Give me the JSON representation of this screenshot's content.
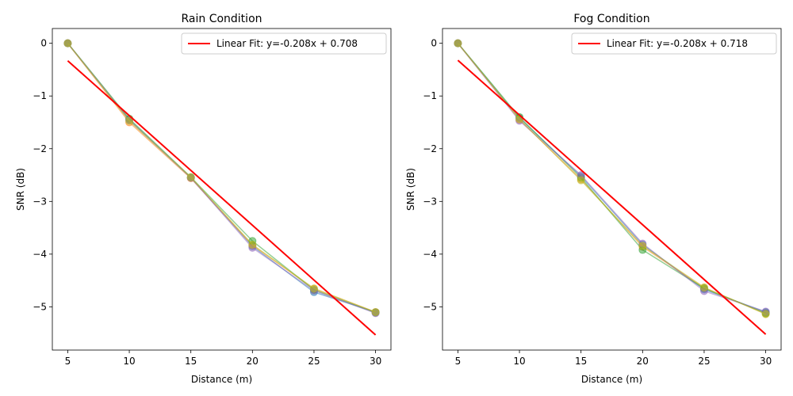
{
  "chart_data": [
    {
      "type": "line",
      "title": "Rain Condition",
      "xlabel": "Distance (m)",
      "ylabel": "SNR (dB)",
      "xlim": [
        3.75,
        31.25
      ],
      "ylim": [
        -5.82,
        0.28
      ],
      "xticks": [
        5,
        10,
        15,
        20,
        25,
        30
      ],
      "xtick_labels": [
        "5",
        "10",
        "15",
        "20",
        "25",
        "30"
      ],
      "yticks": [
        0,
        -1,
        -2,
        -3,
        -4,
        -5
      ],
      "ytick_labels": [
        "0",
        "−1",
        "−2",
        "−3",
        "−4",
        "−5"
      ],
      "grid": false,
      "legend": {
        "position": "upper-right",
        "entries": [
          "Linear Fit: y=-0.208x + 0.708"
        ]
      },
      "x": [
        5,
        10,
        15,
        20,
        25,
        30
      ],
      "series": [
        {
          "color": "#1f77b4",
          "values": [
            0,
            -1.45,
            -2.55,
            -3.85,
            -4.72,
            -5.1
          ]
        },
        {
          "color": "#ff7f0e",
          "values": [
            0,
            -1.5,
            -2.56,
            -3.83,
            -4.66,
            -5.1
          ]
        },
        {
          "color": "#2ca02c",
          "values": [
            0,
            -1.43,
            -2.54,
            -3.75,
            -4.68,
            -5.11
          ]
        },
        {
          "color": "#9467bd",
          "values": [
            0,
            -1.46,
            -2.55,
            -3.88,
            -4.69,
            -5.12
          ]
        },
        {
          "color": "#bcbd22",
          "values": [
            0,
            -1.47,
            -2.54,
            -3.82,
            -4.65,
            -5.1
          ]
        }
      ],
      "fit": {
        "color": "#ff0000",
        "x": [
          5,
          30
        ],
        "values": [
          -0.332,
          -5.532
        ]
      }
    },
    {
      "type": "line",
      "title": "Fog Condition",
      "xlabel": "Distance (m)",
      "ylabel": "SNR (dB)",
      "xlim": [
        3.75,
        31.25
      ],
      "ylim": [
        -5.82,
        0.28
      ],
      "xticks": [
        5,
        10,
        15,
        20,
        25,
        30
      ],
      "xtick_labels": [
        "5",
        "10",
        "15",
        "20",
        "25",
        "30"
      ],
      "yticks": [
        0,
        -1,
        -2,
        -3,
        -4,
        -5
      ],
      "ytick_labels": [
        "0",
        "−1",
        "−2",
        "−3",
        "−4",
        "−5"
      ],
      "grid": false,
      "legend": {
        "position": "upper-right",
        "entries": [
          "Linear Fit: y=-0.208x + 0.718"
        ]
      },
      "x": [
        5,
        10,
        15,
        20,
        25,
        30
      ],
      "series": [
        {
          "color": "#1f77b4",
          "values": [
            0,
            -1.42,
            -2.52,
            -3.82,
            -4.67,
            -5.1
          ]
        },
        {
          "color": "#ff7f0e",
          "values": [
            0,
            -1.45,
            -2.58,
            -3.86,
            -4.64,
            -5.13
          ]
        },
        {
          "color": "#2ca02c",
          "values": [
            0,
            -1.4,
            -2.55,
            -3.92,
            -4.65,
            -5.12
          ]
        },
        {
          "color": "#9467bd",
          "values": [
            0,
            -1.47,
            -2.5,
            -3.8,
            -4.7,
            -5.09
          ]
        },
        {
          "color": "#bcbd22",
          "values": [
            0,
            -1.44,
            -2.6,
            -3.84,
            -4.63,
            -5.14
          ]
        }
      ],
      "fit": {
        "color": "#ff0000",
        "x": [
          5,
          30
        ],
        "values": [
          -0.322,
          -5.522
        ]
      }
    }
  ]
}
